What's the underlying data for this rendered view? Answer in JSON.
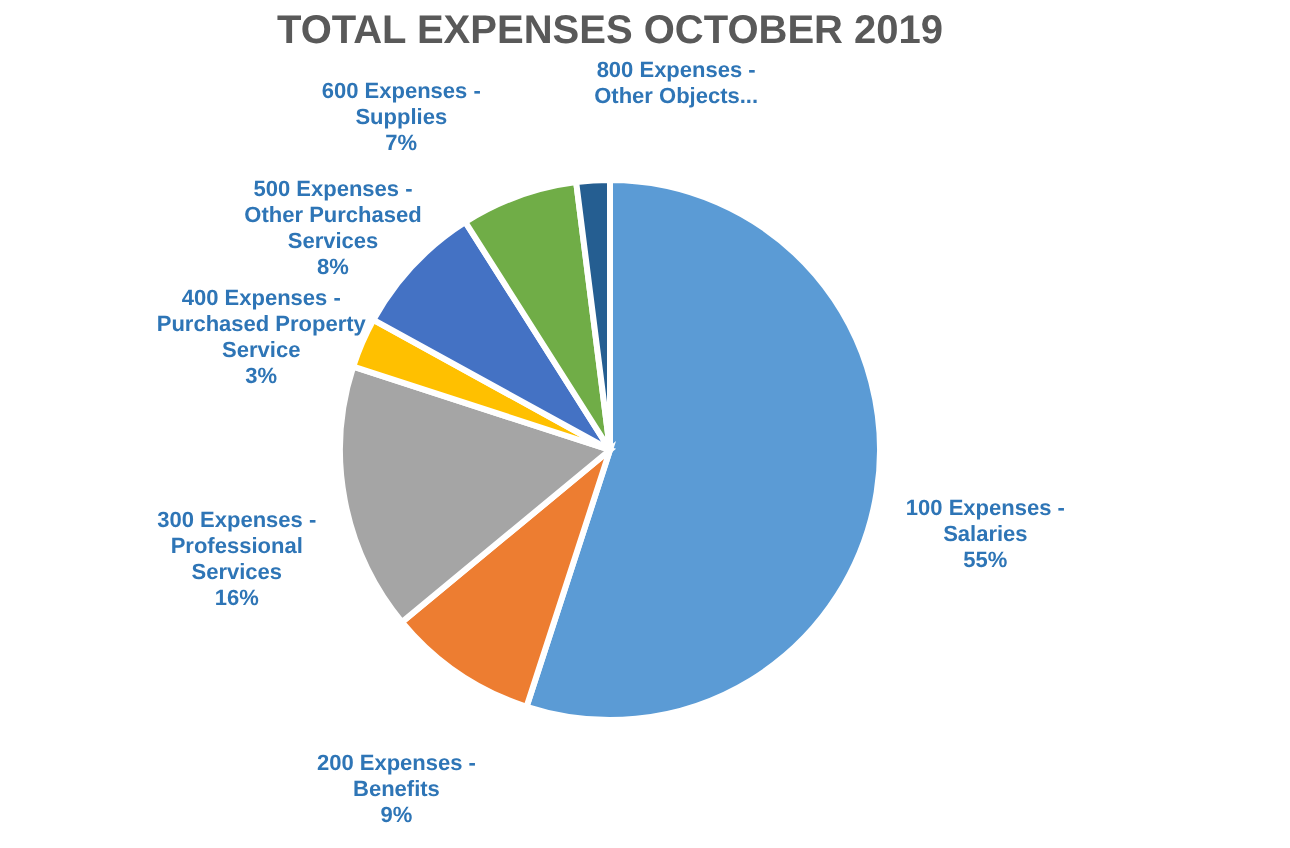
{
  "chart_data": {
    "type": "pie",
    "title": "TOTAL EXPENSES OCTOBER 2019",
    "categories": [
      "100 Expenses - Salaries",
      "200 Expenses - Benefits",
      "300 Expenses - Professional Services",
      "400 Expenses - Purchased Property Service",
      "500 Expenses - Other Purchased Services",
      "600 Expenses - Supplies",
      "800 Expenses - Other Objects..."
    ],
    "values": [
      55,
      9,
      16,
      3,
      8,
      7,
      2
    ],
    "colors": [
      "#5b9bd5",
      "#ed7d31",
      "#a5a5a5",
      "#ffc000",
      "#4472c4",
      "#70ad47",
      "#255e91"
    ],
    "value_labels": [
      "55%",
      "9%",
      "16%",
      "3%",
      "8%",
      "7%",
      null
    ],
    "legend": false
  }
}
